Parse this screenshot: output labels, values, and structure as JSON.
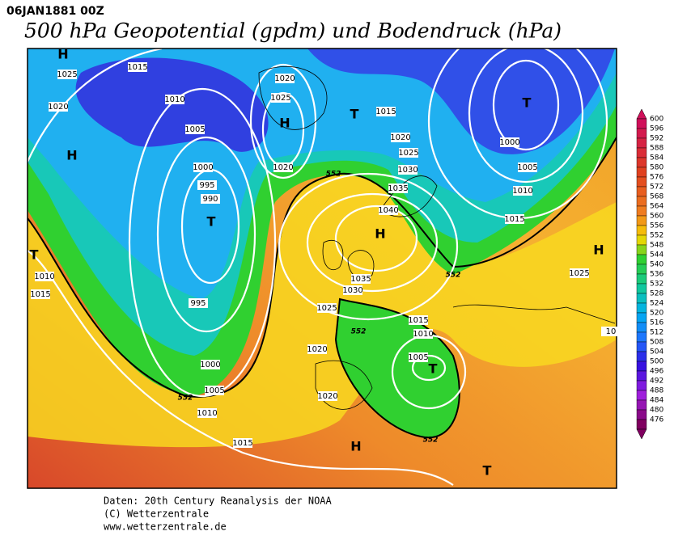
{
  "header": {
    "date": "06JAN1881 00Z",
    "title": "500 hPa Geopotential (gpdm) und Bodendruck (hPa)"
  },
  "map": {
    "isobar_labels": [
      "1015",
      "1025",
      "1020",
      "1010",
      "1005",
      "1000",
      "995",
      "990",
      "995",
      "1000",
      "1005",
      "1010",
      "1015",
      "1020",
      "1025",
      "1020",
      "1015",
      "1020",
      "1025",
      "1030",
      "1035",
      "1040",
      "1035",
      "1030",
      "1025",
      "1020",
      "1020",
      "1015",
      "1010",
      "1005",
      "1000",
      "1005",
      "1010",
      "1015",
      "1010",
      "1015",
      "1025",
      "10"
    ],
    "pressure_centers": [
      "H",
      "H",
      "T",
      "H",
      "T",
      "T",
      "T",
      "H",
      "H",
      "T",
      "H",
      "T"
    ],
    "contour_labels": [
      "552",
      "552",
      "552",
      "552",
      "552"
    ]
  },
  "colorbar": {
    "labels": [
      600,
      596,
      592,
      588,
      584,
      580,
      576,
      572,
      568,
      564,
      560,
      556,
      552,
      548,
      544,
      540,
      536,
      532,
      528,
      524,
      520,
      516,
      512,
      508,
      504,
      500,
      496,
      492,
      488,
      484,
      480,
      476
    ]
  },
  "footer": {
    "lines": [
      "Daten: 20th Century Reanalysis der NOAA",
      "(C) Wetterzentrale",
      "www.wetterzentrale.de"
    ]
  }
}
